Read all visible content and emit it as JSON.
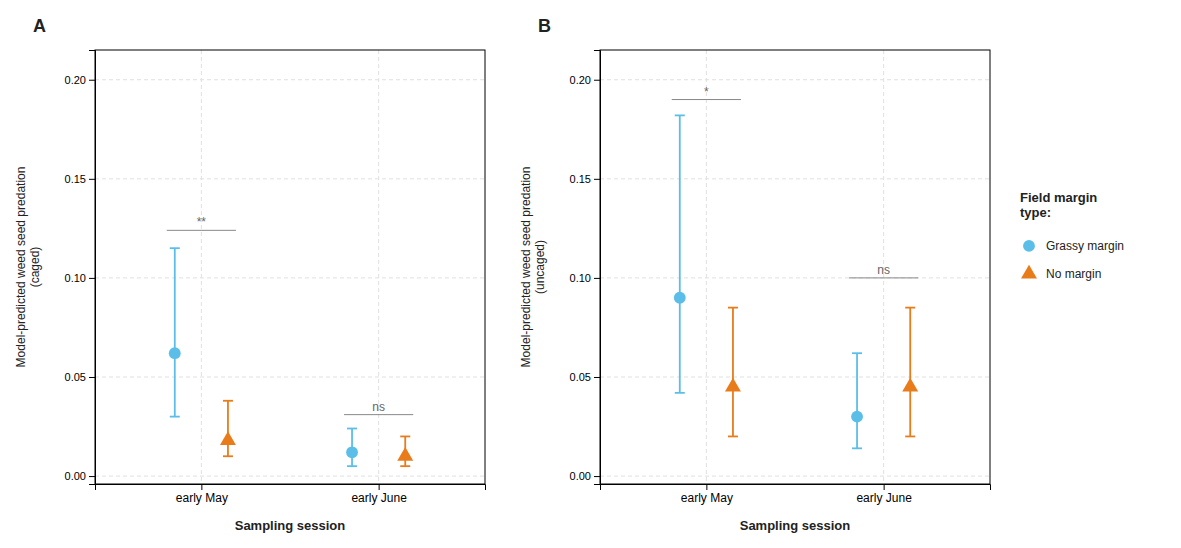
{
  "chart_data": [
    {
      "type": "errorbar",
      "title": "A",
      "y_label": "Model-predicted weed seed predation\n(caged)",
      "x_label": "Sampling session",
      "categories": [
        "early May",
        "early June"
      ],
      "ylim": [
        -0.004,
        0.215
      ],
      "yticks": [
        {
          "value": 0,
          "label": "0.00"
        },
        0.05,
        {
          "value": 0.1,
          "label": "0.10"
        },
        0.15,
        {
          "value": 0.2,
          "label": "0.20"
        }
      ],
      "grid": true,
      "series": [
        {
          "color": "#5BBEE8",
          "marker": "circle",
          "values": [
            0.062,
            0.012
          ],
          "ci_low": [
            0.03,
            0.005
          ],
          "ci_high": [
            0.115,
            0.024
          ]
        },
        {
          "color": "#E87C1A",
          "marker": "triangle",
          "values": [
            0.018,
            0.01
          ],
          "ci_low": [
            0.01,
            0.005
          ],
          "ci_high": [
            0.038,
            0.02
          ]
        }
      ],
      "annotations": [
        {
          "text": "**",
          "category": "early May",
          "y": 0.124
        },
        {
          "text": "ns",
          "category": "early June",
          "y": 0.031
        }
      ]
    },
    {
      "type": "errorbar",
      "title": "B",
      "y_label": "Model-predicted weed seed predation\n(uncaged)",
      "x_label": "Sampling session",
      "categories": [
        "early May",
        "early June"
      ],
      "ylim": [
        -0.004,
        0.215
      ],
      "yticks": [
        {
          "value": 0,
          "label": "0.00"
        },
        0.05,
        {
          "value": 0.1,
          "label": "0.10"
        },
        0.15,
        {
          "value": 0.2,
          "label": "0.20"
        }
      ],
      "grid": true,
      "legend_title": "Field margin\ntype:",
      "series": [
        {
          "name": "Grassy margin",
          "color": "#5BBEE8",
          "marker": "circle",
          "values": [
            0.09,
            0.03
          ],
          "ci_low": [
            0.042,
            0.014
          ],
          "ci_high": [
            0.182,
            0.062
          ]
        },
        {
          "name": "No margin",
          "color": "#E87C1A",
          "marker": "triangle",
          "values": [
            0.045,
            0.045
          ],
          "ci_low": [
            0.02,
            0.02
          ],
          "ci_high": [
            0.085,
            0.085
          ]
        }
      ],
      "annotations": [
        {
          "text": "*",
          "category": "early May",
          "y": 0.19
        },
        {
          "text": "ns",
          "category": "early June",
          "y": 0.1
        }
      ]
    }
  ]
}
